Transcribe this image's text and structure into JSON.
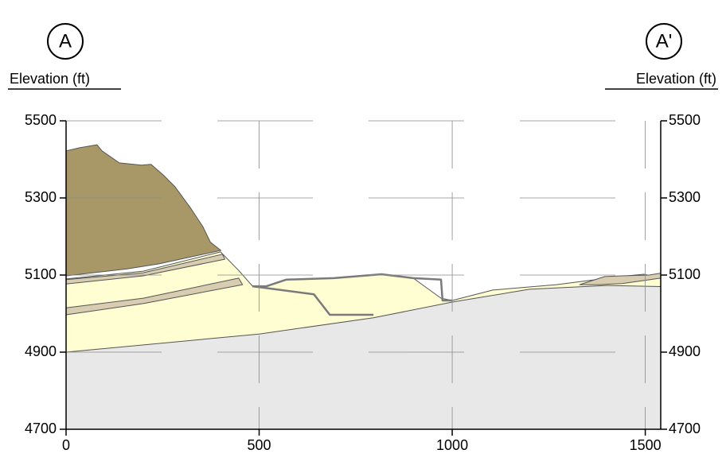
{
  "chart_data": {
    "type": "cross-section",
    "left_marker": "A",
    "right_marker": "A'",
    "y_label": "Elevation (ft)",
    "y2_label": "Elevation (ft)",
    "xlim": [
      0,
      1540
    ],
    "xticks": [
      0,
      500,
      1000,
      1500
    ],
    "ylim": [
      4700,
      5500
    ],
    "yticks": [
      4700,
      4900,
      5100,
      5300,
      5500
    ],
    "y2lim": [
      4700,
      5500
    ],
    "y2ticks": [
      4700,
      4900,
      5100,
      5300,
      5500
    ],
    "grid": true,
    "series": [
      {
        "color": "#fffdd2",
        "outline_only": false,
        "x": [
          0,
          0,
          200,
          400,
          447,
          483,
          519,
          570,
          693,
          817,
          899,
          971,
          1000,
          1105,
          1270,
          1434,
          1496,
          1540,
          1540,
          0
        ],
        "values": [
          4700,
          5090,
          5110,
          5160,
          5112,
          5071,
          5071,
          5088,
          5092,
          5102,
          5092,
          5040,
          5034,
          5061,
          5075,
          5096,
          5102,
          5092,
          4700,
          4700
        ]
      },
      {
        "color": "#e8e8e8",
        "outline_only": false,
        "x": [
          0,
          500,
          796,
          1000,
          1200,
          1400,
          1540,
          1540,
          0
        ],
        "values": [
          4900,
          4947,
          4989,
          5030,
          5063,
          5073,
          5070,
          4700,
          4700
        ]
      },
      {
        "color": "#a89868",
        "outline_only": false,
        "x": [
          0,
          35,
          80,
          93,
          138,
          195,
          220,
          251,
          282,
          323,
          354,
          374,
          401,
          241,
          158,
          0
        ],
        "values": [
          5422,
          5430,
          5438,
          5422,
          5391,
          5385,
          5387,
          5360,
          5329,
          5273,
          5226,
          5185,
          5164,
          5129,
          5116,
          5098
        ]
      },
      {
        "color": "#d8cdb0",
        "outline_only": false,
        "x": [
          0,
          200,
          405,
          411,
          200,
          0
        ],
        "values": [
          5088,
          5106,
          5154,
          5141,
          5098,
          5077
        ]
      },
      {
        "color": "#d8cdb0",
        "outline_only": false,
        "x": [
          0,
          200,
          447,
          457,
          200,
          0
        ],
        "values": [
          5015,
          5040,
          5092,
          5075,
          5026,
          4997
        ]
      },
      {
        "color": "#d8cdb0",
        "outline_only": false,
        "x": [
          1330,
          1395,
          1440,
          1510,
          1540,
          1540,
          1440,
          1380
        ],
        "values": [
          5075,
          5096,
          5098,
          5100,
          5105,
          5092,
          5078,
          5075
        ]
      },
      {
        "color": "#7a7a7a",
        "outline_only": true,
        "x": [
          483,
          519,
          570,
          693,
          817,
          899,
          971,
          975,
          1000
        ],
        "values": [
          5071,
          5071,
          5088,
          5092,
          5102,
          5092,
          5088,
          5034,
          5034
        ]
      },
      {
        "color": "#7a7a7a",
        "outline_only": true,
        "x": [
          483,
          642,
          683,
          796
        ],
        "values": [
          5071,
          5050,
          4997,
          4997
        ]
      }
    ]
  }
}
